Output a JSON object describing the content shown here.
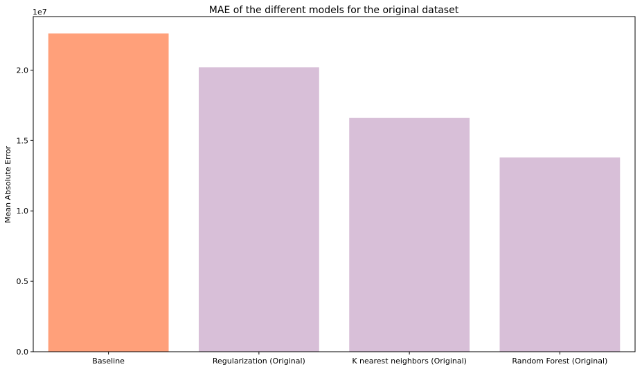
{
  "chart_data": {
    "type": "bar",
    "title": "MAE of the different models for the original dataset",
    "xlabel": "",
    "ylabel": "Mean Absolute Error",
    "y_offset_text": "1e7",
    "categories": [
      "Baseline",
      "Regularization (Original)",
      "K nearest neighbors (Original)",
      "Random Forest (Original)"
    ],
    "values": [
      22600000,
      20200000,
      16600000,
      13800000
    ],
    "colors": [
      "#FFA07A",
      "#D8BFD8",
      "#D8BFD8",
      "#D8BFD8"
    ],
    "ylim": [
      0,
      23800000
    ],
    "yticks": [
      0,
      5000000,
      10000000,
      15000000,
      20000000
    ],
    "ytick_labels": [
      "0.0",
      "0.5",
      "1.0",
      "1.5",
      "2.0"
    ],
    "grid": false,
    "legend": "none"
  }
}
